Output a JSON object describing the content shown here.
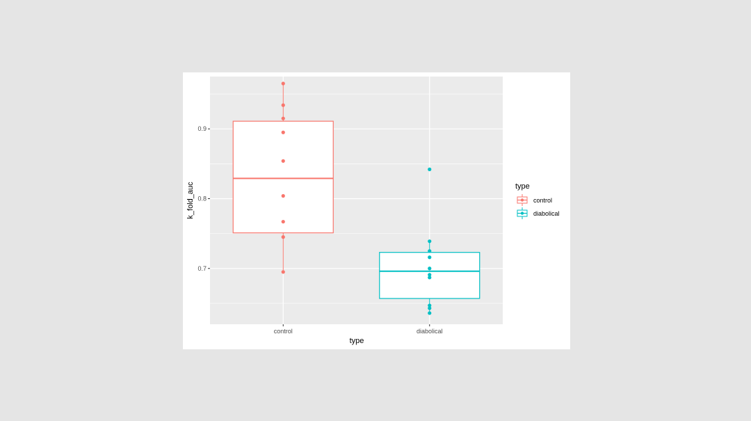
{
  "chart_data": {
    "type": "boxplot",
    "xlabel": "type",
    "ylabel": "k_fold_auc",
    "categories": [
      "control",
      "diabolical"
    ],
    "ylim": [
      0.62,
      0.975
    ],
    "yticks": [
      0.7,
      0.8,
      0.9
    ],
    "ytick_labels": [
      "0.7",
      "0.8",
      "0.9"
    ],
    "grid": true,
    "legend": {
      "title": "type",
      "position": "right",
      "entries": [
        "control",
        "diabolical"
      ]
    },
    "colors": {
      "control": "#f8766d",
      "diabolical": "#00bfc4",
      "panel": "#ebebeb",
      "grid": "#ffffff"
    },
    "series": [
      {
        "name": "control",
        "box": {
          "q1": 0.751,
          "median": 0.829,
          "q3": 0.911,
          "whisker_low": 0.695,
          "whisker_high": 0.965
        },
        "points": [
          0.965,
          0.934,
          0.915,
          0.895,
          0.854,
          0.804,
          0.767,
          0.745,
          0.695
        ]
      },
      {
        "name": "diabolical",
        "box": {
          "q1": 0.657,
          "median": 0.696,
          "q3": 0.723,
          "whisker_low": 0.636,
          "whisker_high": 0.739
        },
        "points": [
          0.842,
          0.739,
          0.725,
          0.716,
          0.7,
          0.691,
          0.687,
          0.647,
          0.643,
          0.636
        ]
      }
    ]
  }
}
